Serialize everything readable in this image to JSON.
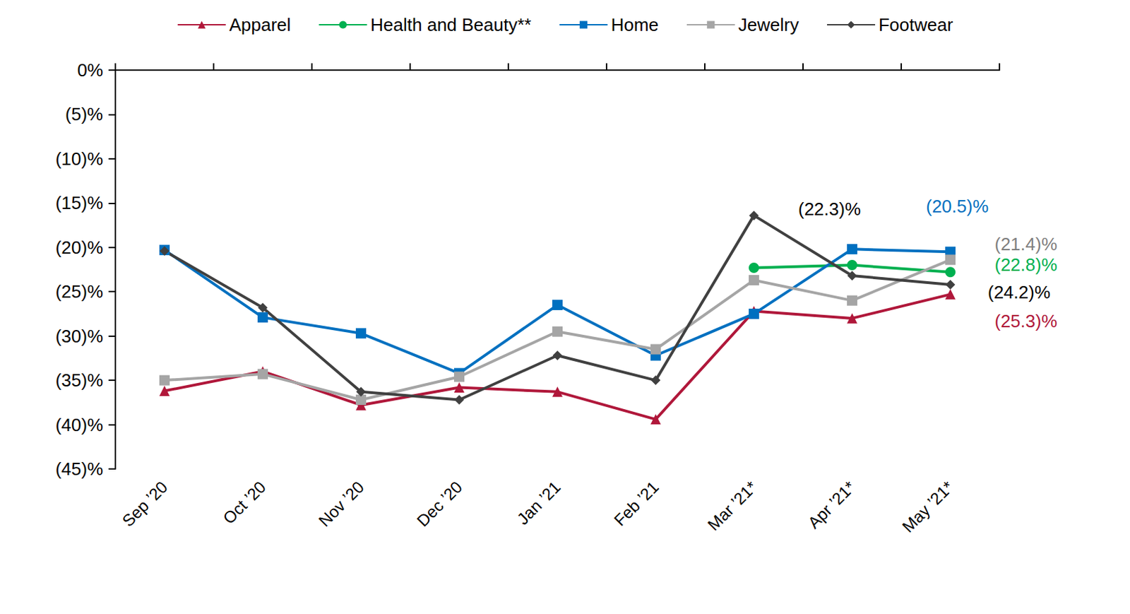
{
  "chart_data": {
    "type": "line",
    "categories": [
      "Sep ’20",
      "Oct ’20",
      "Nov ’20",
      "Dec ’20",
      "Jan ’21",
      "Feb ’21",
      "Mar ’21*",
      "Apr ’21*",
      "May ’21*"
    ],
    "series": [
      {
        "name": "Apparel",
        "color": "#B0173A",
        "marker": "triangle",
        "values": [
          -36.2,
          -34.0,
          -37.8,
          -35.8,
          -36.3,
          -39.4,
          -27.2,
          -28.0,
          -25.3
        ]
      },
      {
        "name": "Health and Beauty**",
        "color": "#00B050",
        "marker": "circle",
        "values": [
          null,
          null,
          null,
          null,
          null,
          null,
          -22.3,
          -22.0,
          -22.8
        ]
      },
      {
        "name": "Home",
        "color": "#0070C0",
        "marker": "square",
        "values": [
          -20.3,
          -27.9,
          -29.7,
          -34.2,
          -26.5,
          -32.2,
          -27.5,
          -20.2,
          -20.5
        ]
      },
      {
        "name": "Jewelry",
        "color": "#A5A5A5",
        "marker": "square",
        "values": [
          -35.0,
          -34.3,
          -37.2,
          -34.6,
          -29.5,
          -31.5,
          -23.7,
          -26.0,
          -21.4
        ]
      },
      {
        "name": "Footwear",
        "color": "#404040",
        "marker": "diamond",
        "values": [
          -20.4,
          -26.8,
          -36.3,
          -37.2,
          -32.2,
          -35.0,
          -16.4,
          -23.2,
          -24.2
        ]
      }
    ],
    "annotations": [
      {
        "series": "Health and Beauty**",
        "category": "Mar ’21*",
        "label": "(22.3)%",
        "color": "#000000"
      },
      {
        "series": "Home",
        "category": "May ’21*",
        "label": "(20.5)%",
        "color": "#0070C0"
      },
      {
        "series": "Jewelry",
        "category": "May ’21*",
        "label": "(21.4)%",
        "color": "#7F7F7F"
      },
      {
        "series": "Health and Beauty**",
        "category": "May ’21*",
        "label": "(22.8)%",
        "color": "#00B050"
      },
      {
        "series": "Footwear",
        "category": "May ’21*",
        "label": "(24.2)%",
        "color": "#000000"
      },
      {
        "series": "Apparel",
        "category": "May ’21*",
        "label": "(25.3)%",
        "color": "#B0173A"
      }
    ],
    "ylim": [
      -45,
      0
    ],
    "yticks": [
      {
        "value": -45,
        "label": "(45)%"
      },
      {
        "value": -40,
        "label": "(40)%"
      },
      {
        "value": -35,
        "label": "(35)%"
      },
      {
        "value": -30,
        "label": "(30)%"
      },
      {
        "value": -25,
        "label": "(25)%"
      },
      {
        "value": -20,
        "label": "(20)%"
      },
      {
        "value": -15,
        "label": "(15)%"
      },
      {
        "value": -10,
        "label": "(10)%"
      },
      {
        "value": -5,
        "label": "(5)%"
      },
      {
        "value": 0,
        "label": "0%"
      }
    ],
    "grid": false,
    "legend": "top"
  }
}
